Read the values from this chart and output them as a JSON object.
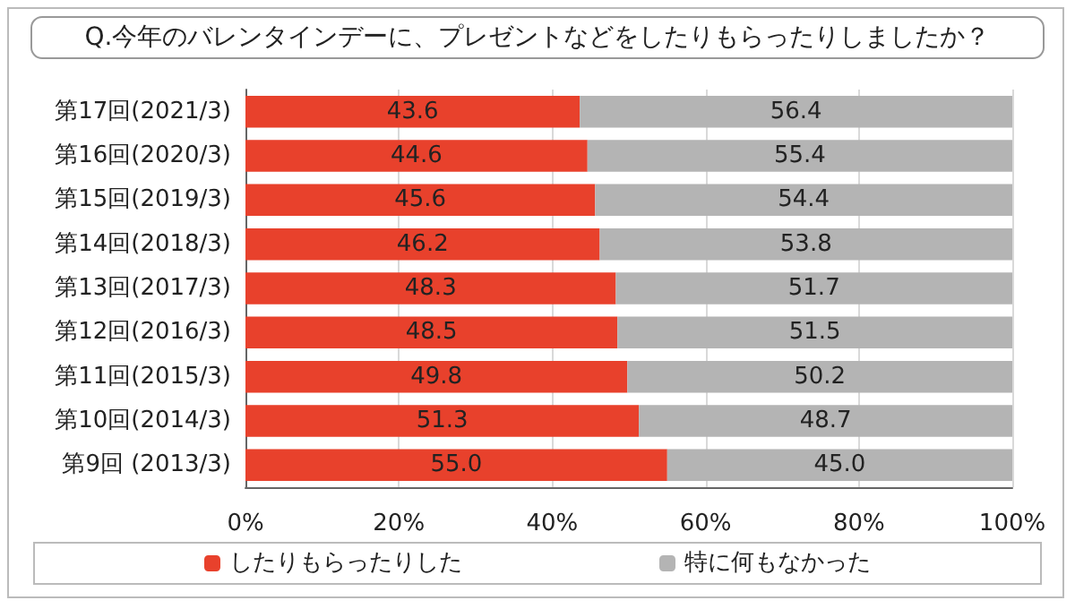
{
  "chart_data": {
    "type": "bar",
    "orientation": "horizontal",
    "stacked": true,
    "title": "Q.今年のバレンタインデーに、プレゼントなどをしたりもらったりしましたか？",
    "categories": [
      "第17回(2021/3)",
      "第16回(2020/3)",
      "第15回(2019/3)",
      "第14回(2018/3)",
      "第13回(2017/3)",
      "第12回(2016/3)",
      "第11回(2015/3)",
      "第10回(2014/3)",
      "第9回 (2013/3)"
    ],
    "series": [
      {
        "name": "したりもらったりした",
        "color": "#e8412c",
        "values": [
          43.6,
          44.6,
          45.6,
          46.2,
          48.3,
          48.5,
          49.8,
          51.3,
          55.0
        ]
      },
      {
        "name": "特に何もなかった",
        "color": "#b4b4b4",
        "values": [
          56.4,
          55.4,
          54.4,
          53.8,
          51.7,
          51.5,
          50.2,
          48.7,
          45.0
        ]
      }
    ],
    "value_labels": [
      [
        "43.6",
        "44.6",
        "45.6",
        "46.2",
        "48.3",
        "48.5",
        "49.8",
        "51.3",
        "55.0"
      ],
      [
        "56.4",
        "55.4",
        "54.4",
        "53.8",
        "51.7",
        "51.5",
        "50.2",
        "48.7",
        "45.0"
      ]
    ],
    "xlim": [
      0,
      100
    ],
    "xticks": [
      {
        "value": 0,
        "label": "0%"
      },
      {
        "value": 20,
        "label": "20%"
      },
      {
        "value": 40,
        "label": "40%"
      },
      {
        "value": 60,
        "label": "60%"
      },
      {
        "value": 80,
        "label": "80%"
      },
      {
        "value": 100,
        "label": "100%"
      }
    ],
    "grid": "x",
    "legend": "bottom"
  }
}
